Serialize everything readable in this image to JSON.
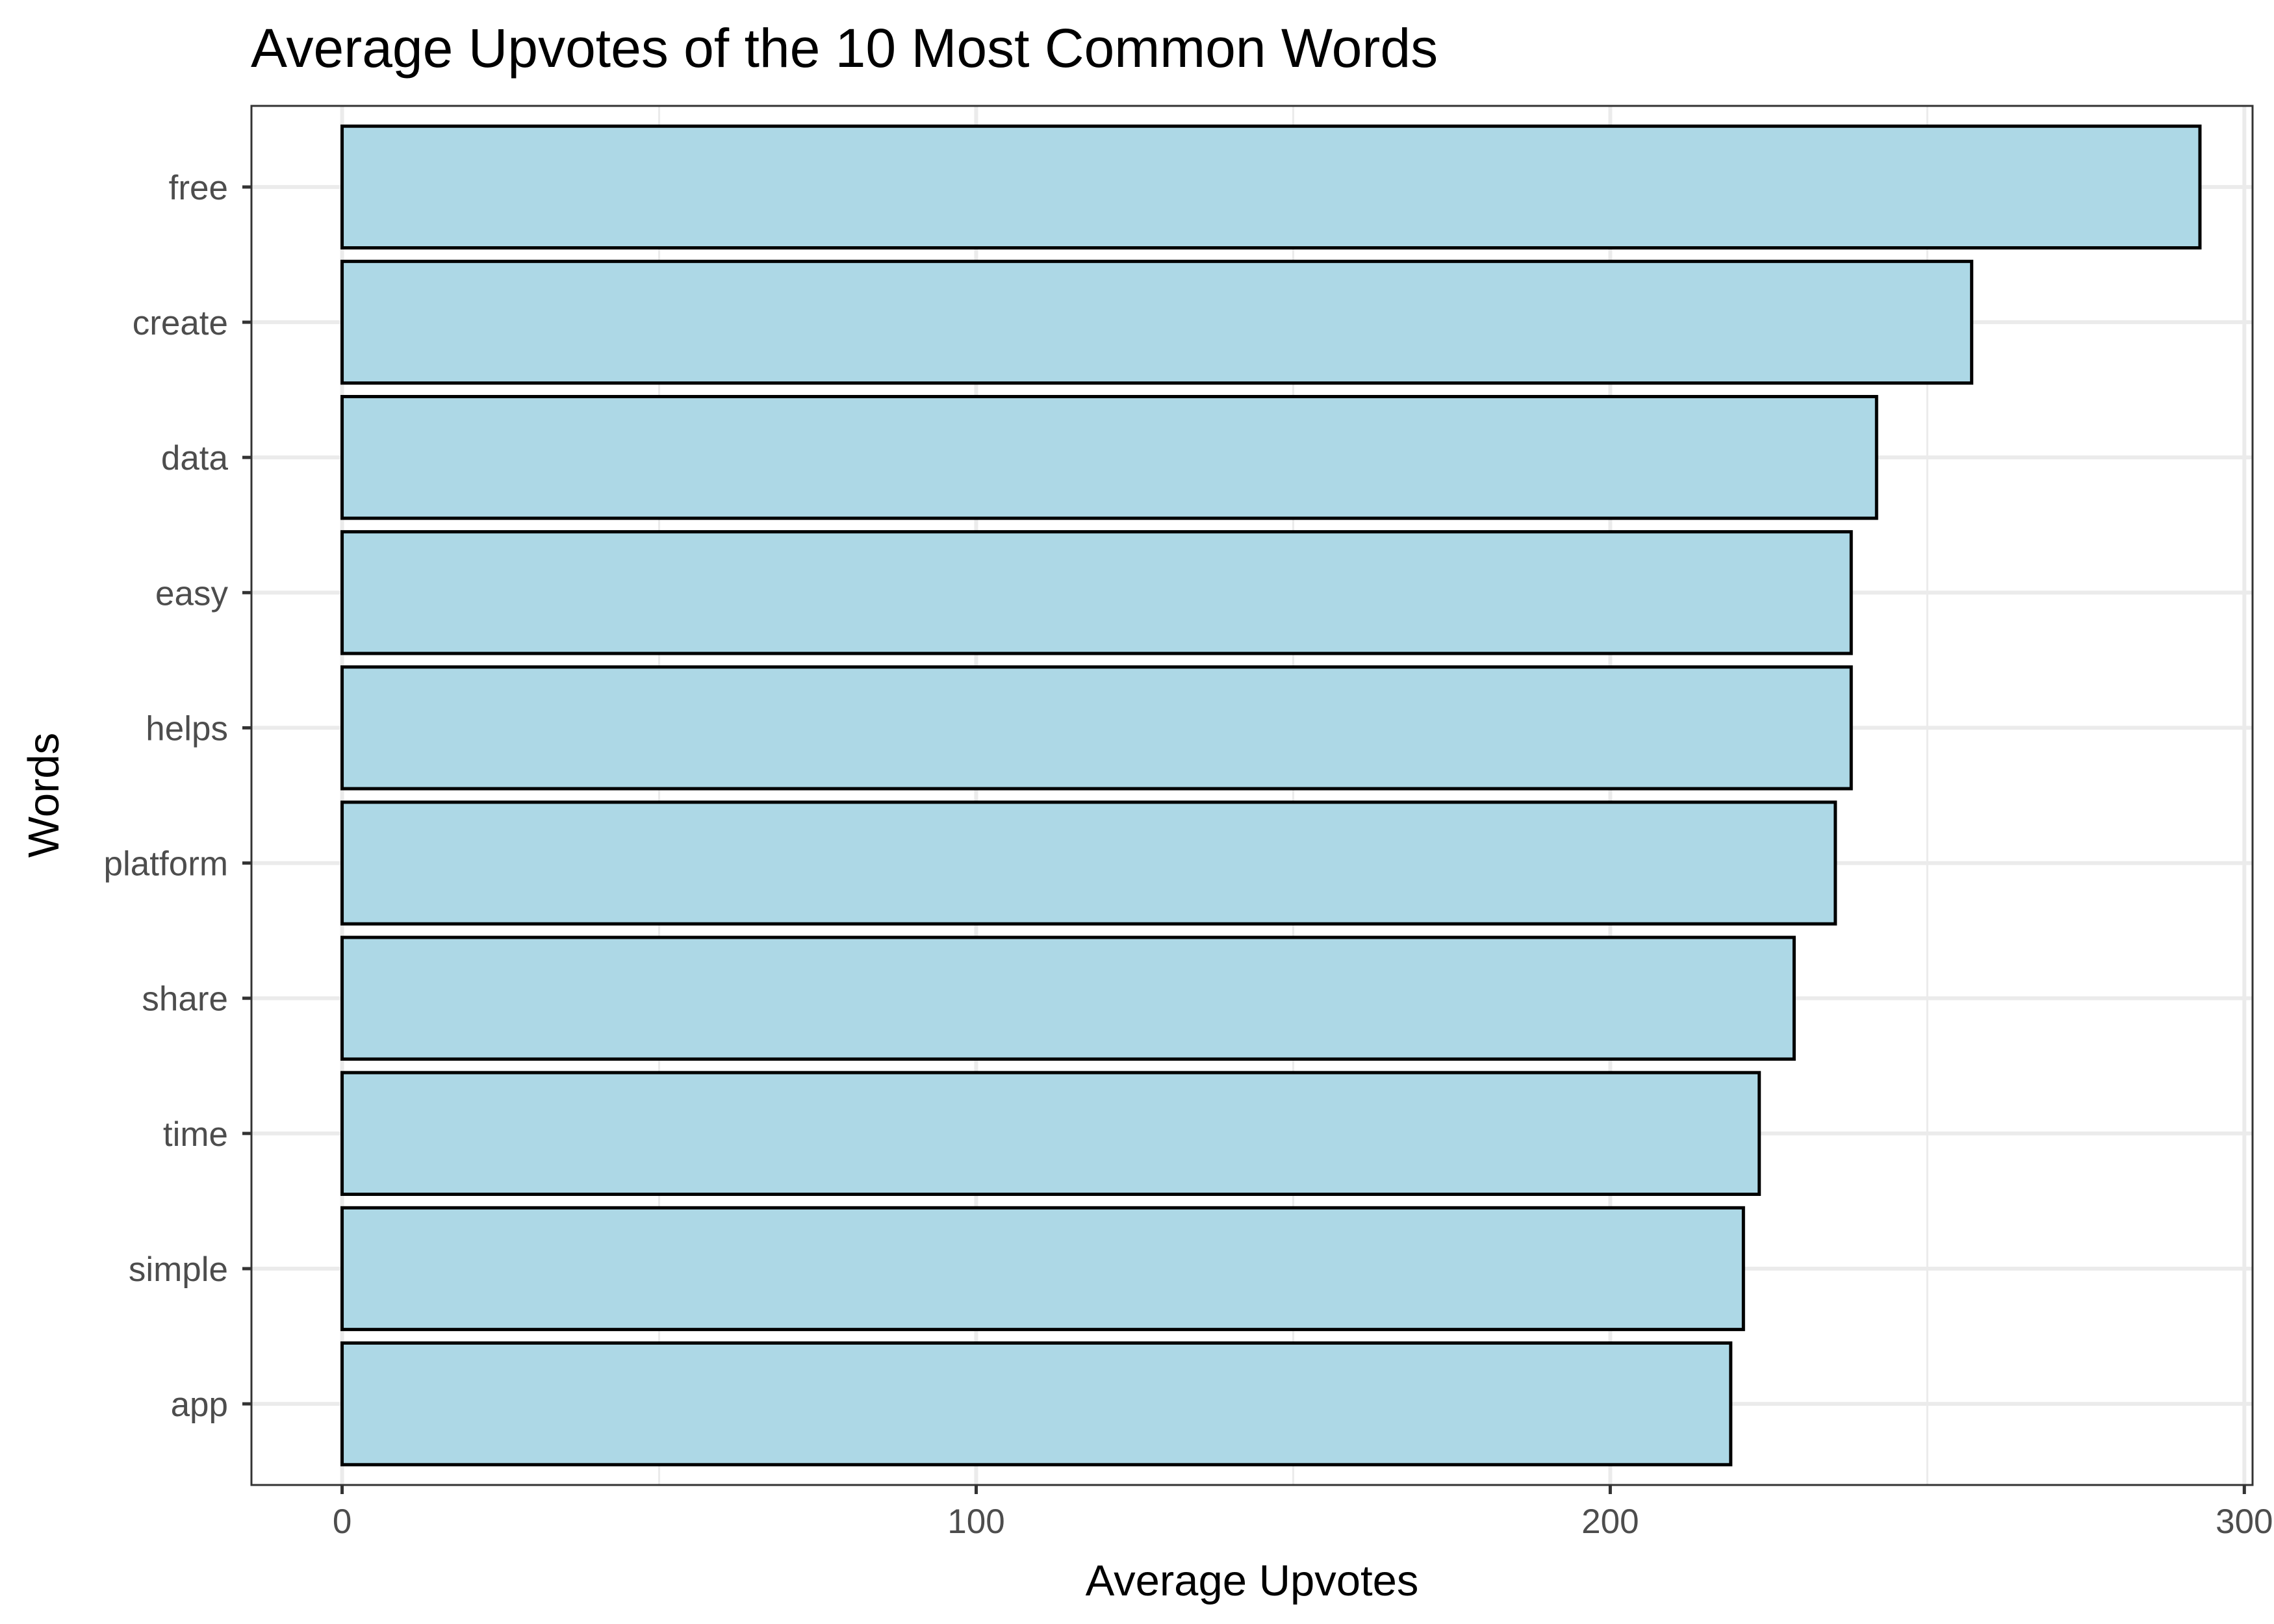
{
  "chart_data": {
    "type": "bar",
    "orientation": "horizontal",
    "title": "Average Upvotes of the 10 Most Common Words",
    "xlabel": "Average Upvotes",
    "ylabel": "Words",
    "categories": [
      "free",
      "create",
      "data",
      "easy",
      "helps",
      "platform",
      "share",
      "time",
      "simple",
      "app"
    ],
    "values": [
      293,
      257,
      242,
      238,
      238,
      235.5,
      229,
      223.5,
      221,
      219
    ],
    "xlim": [
      -14.3,
      301.3
    ],
    "xticks": [
      0,
      100,
      200,
      300
    ],
    "xtick_labels": [
      "0",
      "100",
      "200",
      "300"
    ],
    "grid": true,
    "legend": "none",
    "colors": {
      "bar_fill": "#add8e6",
      "bar_stroke": "#000000",
      "grid": "#ebebeb",
      "tick_label": "#4d4d4d",
      "axis_line": "#333333"
    }
  }
}
